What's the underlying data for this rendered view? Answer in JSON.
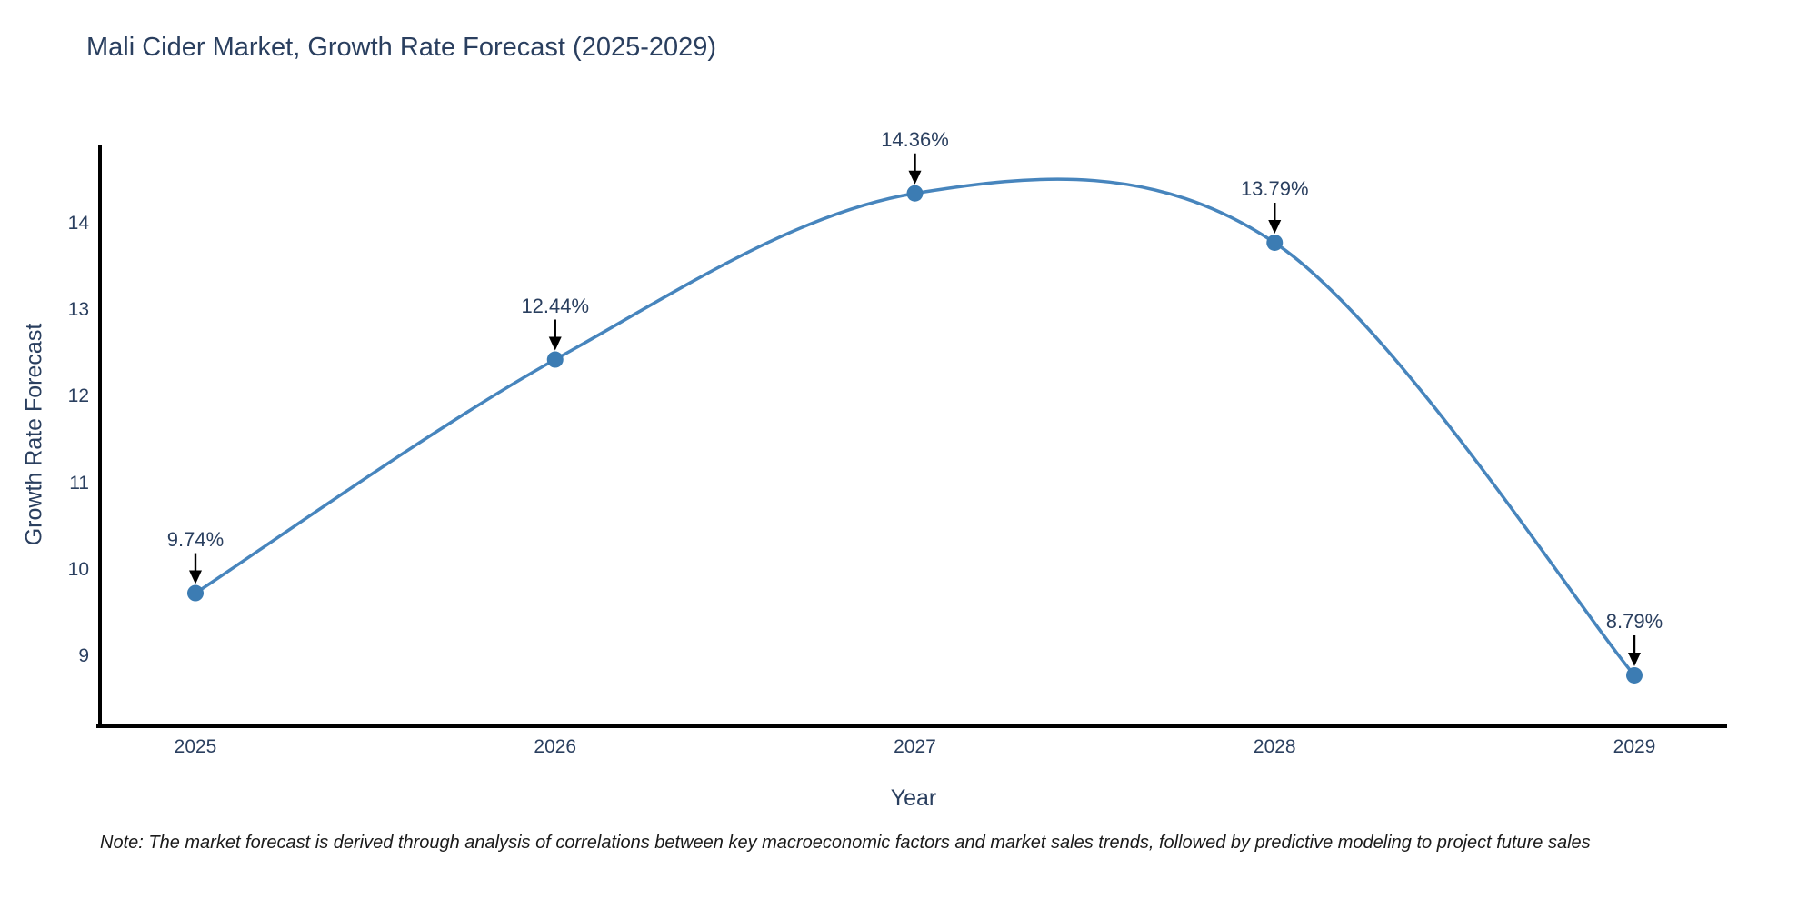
{
  "chart_data": {
    "type": "line",
    "title": "Mali Cider Market, Growth Rate Forecast (2025-2029)",
    "xlabel": "Year",
    "ylabel": "Growth Rate Forecast",
    "categories": [
      2025,
      2026,
      2027,
      2028,
      2029
    ],
    "series": [
      {
        "name": "Growth Rate Forecast",
        "values": [
          9.74,
          12.44,
          14.36,
          13.79,
          8.79
        ]
      }
    ],
    "point_labels": [
      "9.74%",
      "12.44%",
      "14.36%",
      "13.79%",
      "8.79%"
    ],
    "yticks": [
      9,
      10,
      11,
      12,
      13,
      14
    ],
    "ylim": [
      8.2,
      14.9
    ],
    "line_shape": "spline",
    "grid": false,
    "legend": "none",
    "colors": {
      "line": "#4785bd",
      "marker": "#3c7cb3",
      "axis_line": "#000000",
      "text": "#2a3f5f",
      "annotation_arrow": "#000000",
      "note_text": "#1a1a1a"
    }
  },
  "note": "Note: The market forecast is derived through analysis of correlations between key macroeconomic factors and market sales trends, followed by predictive modeling to project future sales"
}
